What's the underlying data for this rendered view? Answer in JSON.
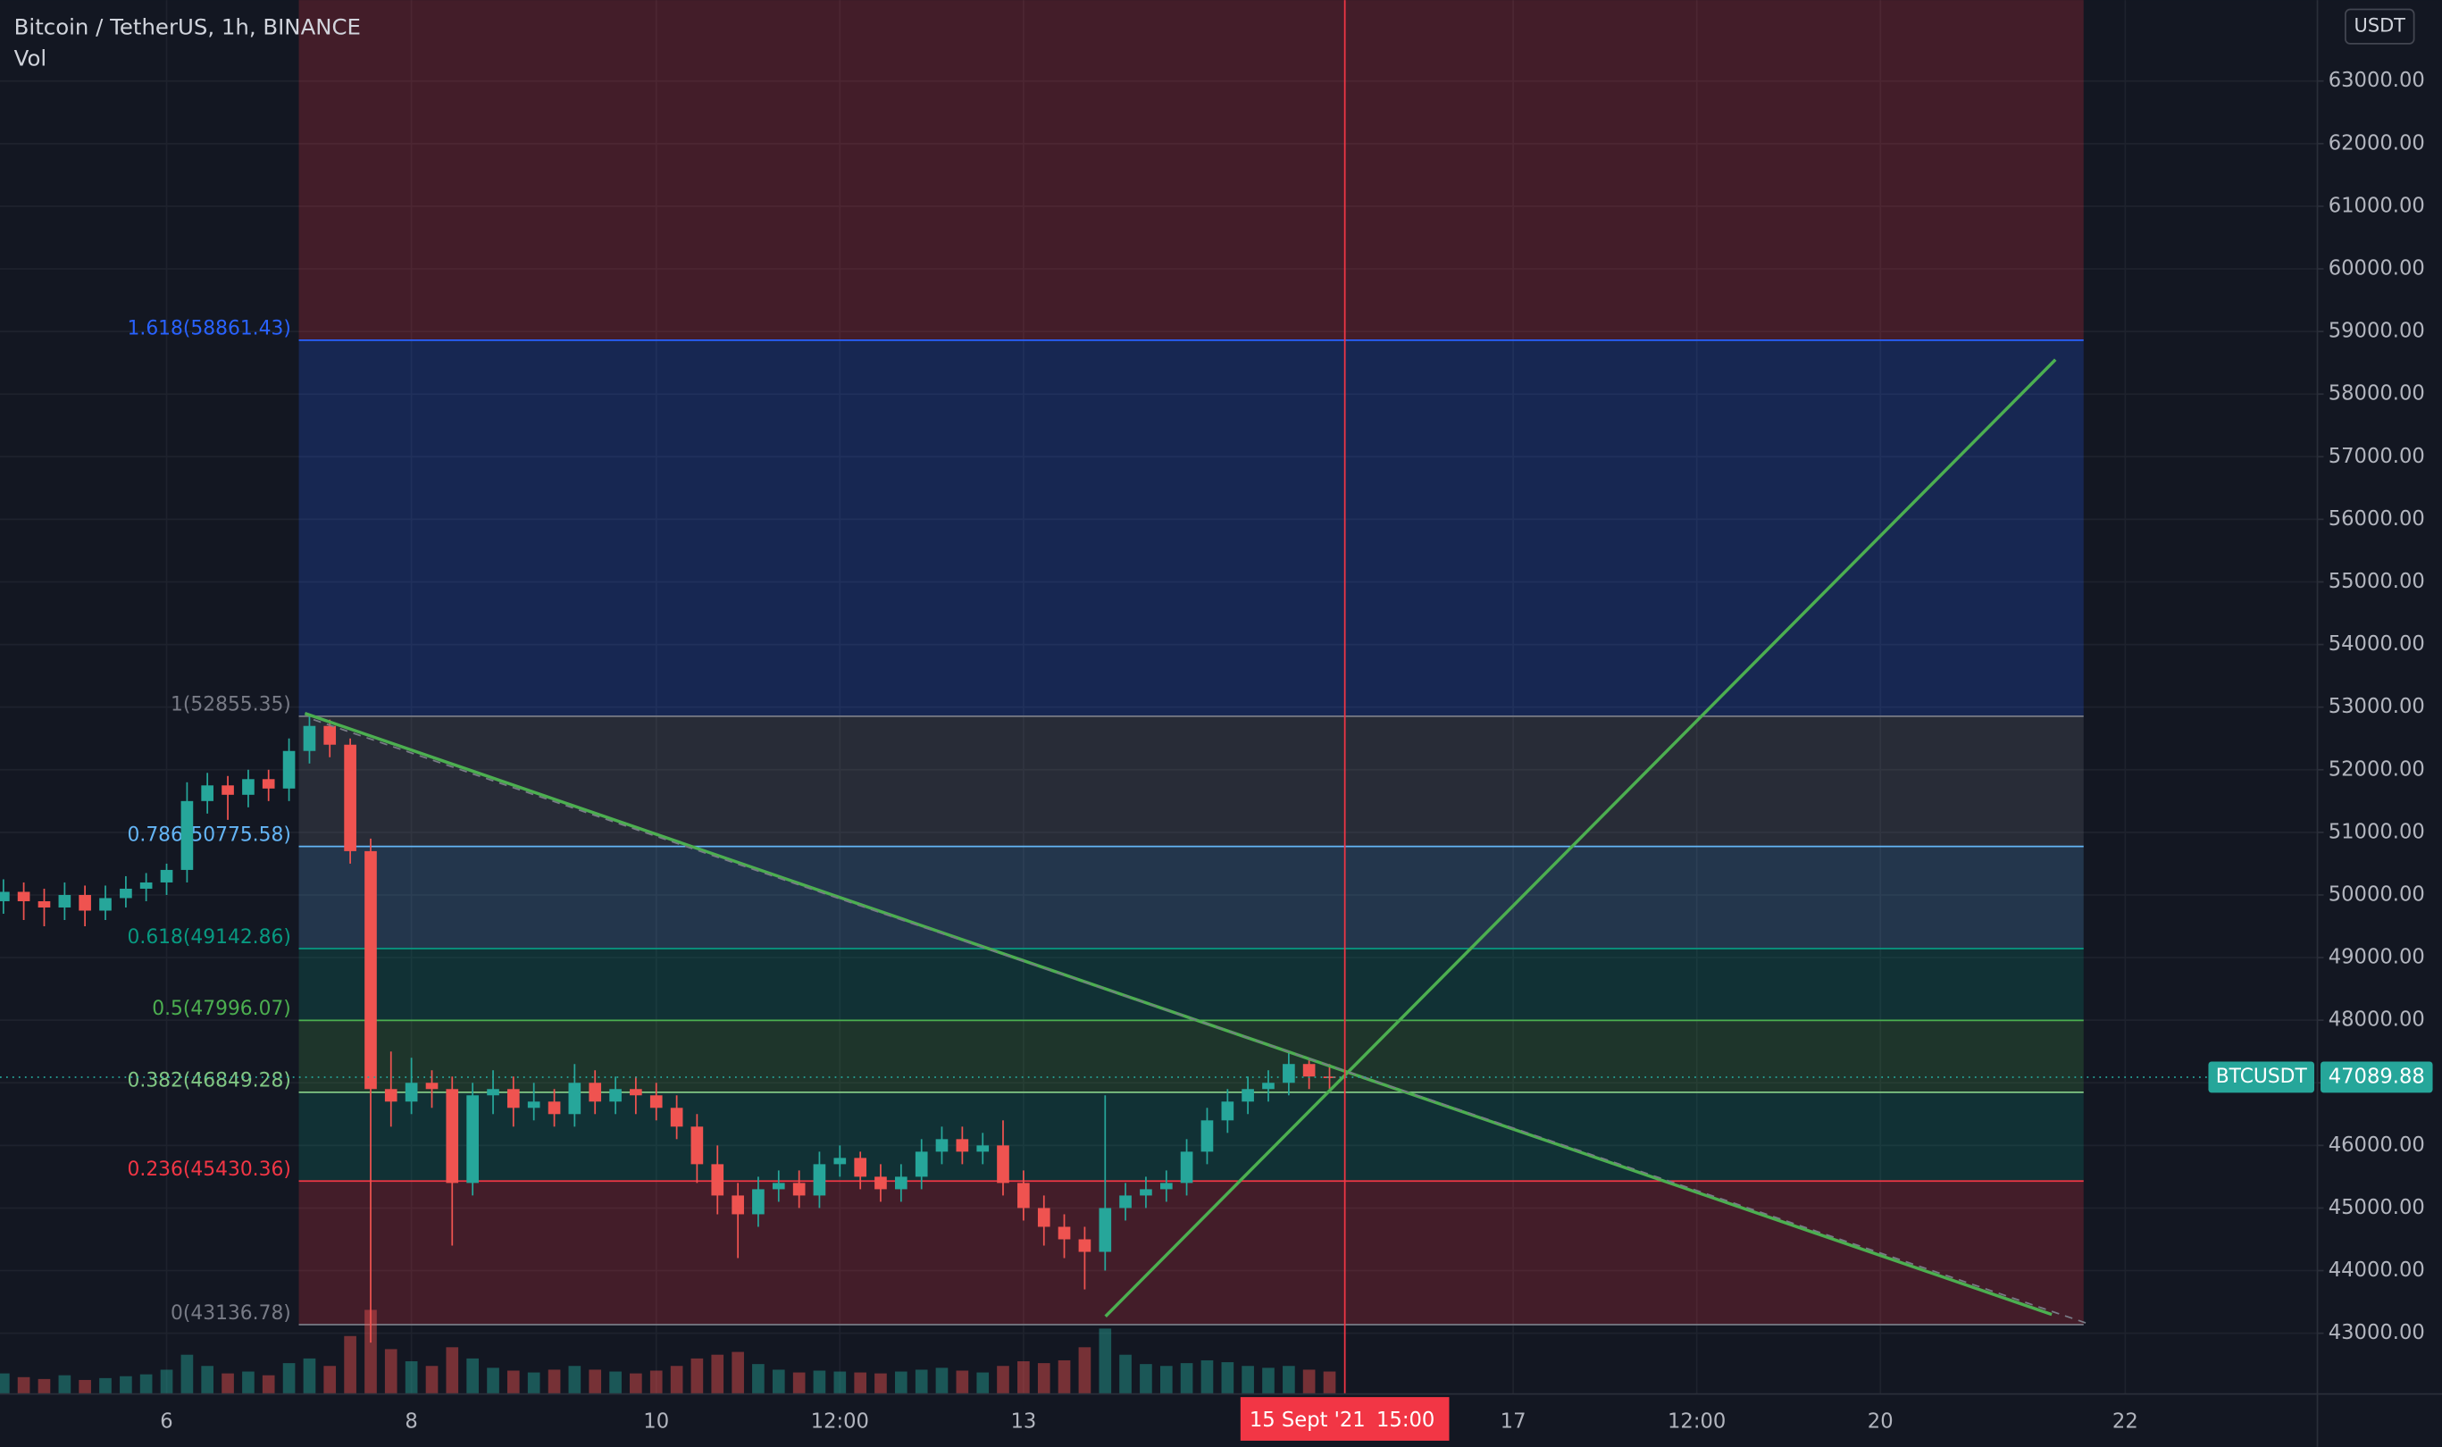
{
  "chart_data": {
    "type": "candlestick",
    "title": "Bitcoin / TetherUS, 1h, BINANCE",
    "subtitle": "Vol",
    "currency": "USDT",
    "colors": {
      "up": "#26a69a",
      "down": "#ef5350"
    },
    "xlim": [
      4.639,
      23.57
    ],
    "ylim": [
      42030,
      64293
    ],
    "vol_ylim": [
      0,
      1000
    ],
    "grid": true,
    "xticks": [
      6,
      8,
      10,
      {
        "value": 11.5,
        "label": "12:00"
      },
      13,
      17,
      {
        "value": 18.5,
        "label": "12:00"
      },
      20,
      22
    ],
    "yticks": [
      {
        "value": 43000,
        "label": "43000.00"
      },
      {
        "value": 44000,
        "label": "44000.00"
      },
      {
        "value": 45000,
        "label": "45000.00"
      },
      {
        "value": 46000,
        "label": "46000.00"
      },
      {
        "value": 47000,
        "label": "47000.00"
      },
      {
        "value": 48000,
        "label": "48000.00"
      },
      {
        "value": 49000,
        "label": "49000.00"
      },
      {
        "value": 50000,
        "label": "50000.00"
      },
      {
        "value": 51000,
        "label": "51000.00"
      },
      {
        "value": 52000,
        "label": "52000.00"
      },
      {
        "value": 53000,
        "label": "53000.00"
      },
      {
        "value": 54000,
        "label": "54000.00"
      },
      {
        "value": 55000,
        "label": "55000.00"
      },
      {
        "value": 56000,
        "label": "56000.00"
      },
      {
        "value": 57000,
        "label": "57000.00"
      },
      {
        "value": 58000,
        "label": "58000.00"
      },
      {
        "value": 59000,
        "label": "59000.00"
      },
      {
        "value": 60000,
        "label": "60000.00"
      },
      {
        "value": 61000,
        "label": "61000.00"
      },
      {
        "value": 62000,
        "label": "62000.00"
      },
      {
        "value": 63000,
        "label": "63000.00"
      }
    ],
    "candles": {
      "x": [
        4.667,
        4.833,
        5.0,
        5.167,
        5.333,
        5.5,
        5.667,
        5.833,
        6.0,
        6.167,
        6.333,
        6.5,
        6.667,
        6.833,
        7.0,
        7.167,
        7.333,
        7.5,
        7.667,
        7.833,
        8.0,
        8.167,
        8.333,
        8.5,
        8.667,
        8.833,
        9.0,
        9.167,
        9.333,
        9.5,
        9.667,
        9.833,
        10.0,
        10.167,
        10.333,
        10.5,
        10.667,
        10.833,
        11.0,
        11.167,
        11.333,
        11.5,
        11.667,
        11.833,
        12.0,
        12.167,
        12.333,
        12.5,
        12.667,
        12.833,
        13.0,
        13.167,
        13.333,
        13.5,
        13.667,
        13.833,
        14.0,
        14.167,
        14.333,
        14.5,
        14.667,
        14.833,
        15.0,
        15.167,
        15.333,
        15.5
      ],
      "open": [
        49900,
        50050,
        49900,
        49800,
        50000,
        49750,
        49950,
        50100,
        50200,
        50400,
        51500,
        51750,
        51600,
        51850,
        51700,
        52300,
        52700,
        52400,
        50700,
        46900,
        46700,
        47000,
        46900,
        45400,
        46800,
        46900,
        46600,
        46700,
        46500,
        47000,
        46700,
        46900,
        46800,
        46600,
        46300,
        45700,
        45200,
        44900,
        45300,
        45400,
        45200,
        45700,
        45800,
        45500,
        45300,
        45500,
        45900,
        46100,
        45900,
        46000,
        45400,
        45000,
        44700,
        44500,
        44300,
        45000,
        45200,
        45300,
        45400,
        45900,
        46400,
        46700,
        46900,
        47000,
        47300,
        47100
      ],
      "high": [
        50250,
        50200,
        50100,
        50200,
        50150,
        50150,
        50300,
        50350,
        50500,
        51800,
        51950,
        51900,
        52000,
        52000,
        52500,
        52855.35,
        52800,
        52500,
        50900,
        47500,
        47400,
        47200,
        47100,
        47000,
        47200,
        47100,
        47000,
        46900,
        47300,
        47200,
        47100,
        47100,
        47000,
        46800,
        46500,
        46000,
        45400,
        45500,
        45600,
        45600,
        45900,
        46000,
        45900,
        45700,
        45700,
        46100,
        46300,
        46300,
        46200,
        46400,
        45600,
        45200,
        44900,
        44700,
        46800,
        45400,
        45500,
        45600,
        46100,
        46600,
        46900,
        47100,
        47200,
        47500,
        47400,
        47300
      ],
      "low": [
        49700,
        49600,
        49500,
        49600,
        49500,
        49600,
        49800,
        49900,
        50000,
        50200,
        51300,
        51200,
        51400,
        51500,
        51500,
        52100,
        52200,
        50500,
        42850,
        46300,
        46500,
        46600,
        44400,
        45200,
        46500,
        46300,
        46400,
        46300,
        46300,
        46500,
        46500,
        46500,
        46400,
        46100,
        45400,
        44900,
        44200,
        44700,
        45100,
        45000,
        45000,
        45500,
        45300,
        45100,
        45100,
        45300,
        45700,
        45700,
        45700,
        45200,
        44800,
        44400,
        44200,
        43700,
        44000,
        44800,
        45000,
        45100,
        45200,
        45700,
        46200,
        46500,
        46700,
        46800,
        46900,
        46900
      ],
      "close": [
        50050,
        49900,
        49800,
        50000,
        49750,
        49950,
        50100,
        50200,
        50400,
        51500,
        51750,
        51600,
        51850,
        51700,
        52300,
        52700,
        52400,
        50700,
        46900,
        46700,
        47000,
        46900,
        45400,
        46800,
        46900,
        46600,
        46700,
        46500,
        47000,
        46700,
        46900,
        46800,
        46600,
        46300,
        45700,
        45200,
        44900,
        45300,
        45400,
        45200,
        45700,
        45800,
        45500,
        45300,
        45500,
        45900,
        46100,
        45900,
        46000,
        45400,
        45000,
        44700,
        44500,
        44300,
        45000,
        45200,
        45300,
        45400,
        45900,
        46400,
        46700,
        46900,
        47000,
        47300,
        47100,
        47089.88
      ],
      "volume": [
        220,
        180,
        160,
        200,
        150,
        170,
        190,
        210,
        260,
        420,
        300,
        220,
        240,
        200,
        330,
        380,
        300,
        620,
        900,
        480,
        350,
        300,
        500,
        380,
        280,
        250,
        230,
        260,
        300,
        260,
        240,
        220,
        250,
        300,
        380,
        420,
        450,
        320,
        260,
        230,
        250,
        240,
        230,
        220,
        240,
        260,
        280,
        250,
        230,
        300,
        350,
        330,
        360,
        500,
        700,
        420,
        320,
        300,
        330,
        360,
        340,
        300,
        280,
        300,
        260,
        240
      ]
    },
    "fib": {
      "x": [
        7.08,
        21.66
      ],
      "top_fill": "rgba(242,54,69,0.22)",
      "levels": [
        {
          "value": 58861.43,
          "label": "1.618(58861.43)",
          "color": "#2962ff",
          "fill": "rgba(41,98,255,0.22)"
        },
        {
          "value": 52855.35,
          "label": "1(52855.35)",
          "color": "#787b86",
          "fill": "rgba(120,123,134,0.22)"
        },
        {
          "value": 50775.58,
          "label": "0.786(50775.58)",
          "color": "#64b5f6",
          "fill": "rgba(100,181,246,0.2)"
        },
        {
          "value": 49142.86,
          "label": "0.618(49142.86)",
          "color": "#089981",
          "fill": "rgba(8,153,129,0.2)"
        },
        {
          "value": 47996.07,
          "label": "0.5(47996.07)",
          "color": "#4caf50",
          "fill": "rgba(76,175,80,0.2)"
        },
        {
          "value": 46849.28,
          "label": "0.382(46849.28)",
          "color": "#81c784",
          "fill": "rgba(8,153,129,0.2)"
        },
        {
          "value": 45430.36,
          "label": "0.236(45430.36)",
          "color": "#f23645",
          "fill": "rgba(242,54,69,0.22)"
        },
        {
          "value": 43136.78,
          "label": "0(43136.78)",
          "color": "#787b86"
        }
      ]
    },
    "trend_lines": [
      {
        "x": [
          7.13,
          21.4
        ],
        "y": [
          52900,
          43300
        ],
        "color": "#4caf50"
      },
      {
        "x": [
          13.67,
          21.43
        ],
        "y": [
          43270,
          58550
        ],
        "color": "#4caf50"
      },
      {
        "x": [
          7.2,
          21.7
        ],
        "y": [
          52800,
          43150
        ],
        "color": "#787b86",
        "dashed": true
      }
    ],
    "last_price": {
      "symbol": "BTCUSDT",
      "value": 47089.88,
      "color": "#26a69a"
    },
    "crosshair": {
      "x": 15.625,
      "date_label": "15 Sept '21",
      "time_label": "15:00",
      "color": "#f23645"
    }
  }
}
